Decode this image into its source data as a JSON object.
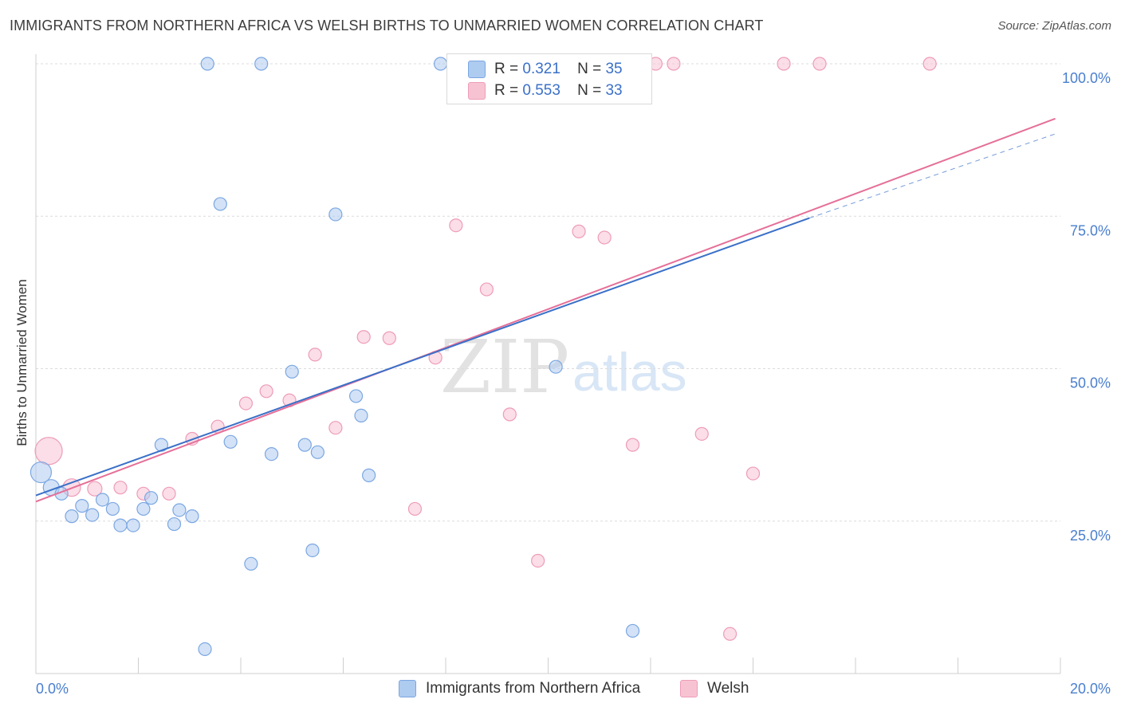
{
  "header": {
    "title": "IMMIGRANTS FROM NORTHERN AFRICA VS WELSH BIRTHS TO UNMARRIED WOMEN CORRELATION CHART",
    "source": "Source: ZipAtlas.com"
  },
  "watermark": {
    "zip": "ZIP",
    "atlas": "atlas"
  },
  "legend": {
    "rows": [
      {
        "r_label": "R =",
        "r_value": "0.321",
        "n_label": "N =",
        "n_value": "35"
      },
      {
        "r_label": "R =",
        "r_value": "0.553",
        "n_label": "N =",
        "n_value": "33"
      }
    ]
  },
  "chart_data": {
    "type": "scatter",
    "title": "IMMIGRANTS FROM NORTHERN AFRICA VS WELSH BIRTHS TO UNMARRIED WOMEN CORRELATION CHART",
    "xlabel": "",
    "ylabel": "Births to Unmarried Women",
    "xlim": [
      0,
      20
    ],
    "ylim": [
      0,
      100
    ],
    "x_tick_labels": [
      "0.0%",
      "20.0%"
    ],
    "y_tick_labels": [
      "25.0%",
      "50.0%",
      "75.0%",
      "100.0%"
    ],
    "y_ticks": [
      25,
      50,
      75,
      100
    ],
    "grid": true,
    "legend_position": "top-center",
    "colors": {
      "blue_fill": "#aecbf0",
      "blue_stroke": "#7ba7e2",
      "blue_line": "#3a70c8",
      "pink_fill": "#f7c3d3",
      "pink_stroke": "#ee9cb7",
      "pink_line": "#e56f98",
      "tick_label": "#4a7fcf"
    },
    "series": [
      {
        "name": "Immigrants from Northern Africa",
        "r": 0.321,
        "n": 35,
        "trend": {
          "x0": 0,
          "y0": 29.2,
          "x1": 15.1,
          "y1": 74.7,
          "dashed_to_x": 19.9,
          "dashed_to_y": 88.5
        },
        "points": [
          {
            "x": 0.1,
            "y": 33.0,
            "s": 13
          },
          {
            "x": 0.3,
            "y": 30.5,
            "s": 10
          },
          {
            "x": 0.5,
            "y": 29.5,
            "s": 8
          },
          {
            "x": 0.7,
            "y": 25.8,
            "s": 8
          },
          {
            "x": 0.9,
            "y": 27.5,
            "s": 8
          },
          {
            "x": 1.1,
            "y": 26.0,
            "s": 8
          },
          {
            "x": 1.3,
            "y": 28.5,
            "s": 8
          },
          {
            "x": 1.5,
            "y": 27.0,
            "s": 8
          },
          {
            "x": 1.65,
            "y": 24.3,
            "s": 8
          },
          {
            "x": 1.9,
            "y": 24.3,
            "s": 8
          },
          {
            "x": 2.1,
            "y": 27.0,
            "s": 8
          },
          {
            "x": 2.25,
            "y": 28.8,
            "s": 8
          },
          {
            "x": 2.45,
            "y": 37.5,
            "s": 8
          },
          {
            "x": 2.7,
            "y": 24.5,
            "s": 8
          },
          {
            "x": 2.8,
            "y": 26.8,
            "s": 8
          },
          {
            "x": 3.05,
            "y": 25.8,
            "s": 8
          },
          {
            "x": 3.35,
            "y": 100.0,
            "s": 8
          },
          {
            "x": 3.3,
            "y": 4.0,
            "s": 8
          },
          {
            "x": 3.6,
            "y": 77.0,
            "s": 8
          },
          {
            "x": 3.8,
            "y": 38.0,
            "s": 8
          },
          {
            "x": 4.2,
            "y": 18.0,
            "s": 8
          },
          {
            "x": 4.4,
            "y": 100.0,
            "s": 8
          },
          {
            "x": 4.6,
            "y": 36.0,
            "s": 8
          },
          {
            "x": 5.0,
            "y": 49.5,
            "s": 8
          },
          {
            "x": 5.25,
            "y": 37.5,
            "s": 8
          },
          {
            "x": 5.4,
            "y": 20.2,
            "s": 8
          },
          {
            "x": 5.5,
            "y": 36.3,
            "s": 8
          },
          {
            "x": 5.85,
            "y": 75.3,
            "s": 8
          },
          {
            "x": 6.25,
            "y": 45.5,
            "s": 8
          },
          {
            "x": 6.35,
            "y": 42.3,
            "s": 8
          },
          {
            "x": 6.5,
            "y": 32.5,
            "s": 8
          },
          {
            "x": 7.9,
            "y": 100.0,
            "s": 8
          },
          {
            "x": 8.7,
            "y": 100.0,
            "s": 8
          },
          {
            "x": 10.15,
            "y": 50.3,
            "s": 8
          },
          {
            "x": 11.65,
            "y": 7.0,
            "s": 8
          }
        ]
      },
      {
        "name": "Welsh",
        "r": 0.553,
        "n": 33,
        "trend": {
          "x0": 0,
          "y0": 28.2,
          "x1": 19.9,
          "y1": 91.0
        },
        "points": [
          {
            "x": 0.25,
            "y": 36.5,
            "s": 17
          },
          {
            "x": 0.7,
            "y": 30.5,
            "s": 11
          },
          {
            "x": 1.15,
            "y": 30.3,
            "s": 9
          },
          {
            "x": 1.65,
            "y": 30.5,
            "s": 8
          },
          {
            "x": 2.1,
            "y": 29.5,
            "s": 8
          },
          {
            "x": 2.6,
            "y": 29.5,
            "s": 8
          },
          {
            "x": 3.05,
            "y": 38.5,
            "s": 8
          },
          {
            "x": 3.55,
            "y": 40.5,
            "s": 8
          },
          {
            "x": 4.1,
            "y": 44.3,
            "s": 8
          },
          {
            "x": 4.5,
            "y": 46.3,
            "s": 8
          },
          {
            "x": 4.95,
            "y": 44.8,
            "s": 8
          },
          {
            "x": 5.45,
            "y": 52.3,
            "s": 8
          },
          {
            "x": 5.85,
            "y": 40.3,
            "s": 8
          },
          {
            "x": 6.4,
            "y": 55.2,
            "s": 8
          },
          {
            "x": 6.9,
            "y": 55.0,
            "s": 8
          },
          {
            "x": 7.4,
            "y": 27.0,
            "s": 8
          },
          {
            "x": 7.8,
            "y": 51.8,
            "s": 8
          },
          {
            "x": 8.2,
            "y": 73.5,
            "s": 8
          },
          {
            "x": 8.8,
            "y": 63.0,
            "s": 8
          },
          {
            "x": 9.25,
            "y": 42.5,
            "s": 8
          },
          {
            "x": 9.8,
            "y": 18.5,
            "s": 8
          },
          {
            "x": 10.35,
            "y": 100.0,
            "s": 8
          },
          {
            "x": 10.6,
            "y": 72.5,
            "s": 8
          },
          {
            "x": 11.1,
            "y": 71.5,
            "s": 8
          },
          {
            "x": 11.65,
            "y": 37.5,
            "s": 8
          },
          {
            "x": 12.1,
            "y": 100.0,
            "s": 8
          },
          {
            "x": 12.45,
            "y": 100.0,
            "s": 8
          },
          {
            "x": 13.0,
            "y": 39.3,
            "s": 8
          },
          {
            "x": 13.55,
            "y": 6.5,
            "s": 8
          },
          {
            "x": 14.0,
            "y": 32.8,
            "s": 8
          },
          {
            "x": 14.6,
            "y": 100.0,
            "s": 8
          },
          {
            "x": 15.3,
            "y": 100.0,
            "s": 8
          },
          {
            "x": 17.45,
            "y": 100.0,
            "s": 8
          }
        ]
      }
    ]
  }
}
